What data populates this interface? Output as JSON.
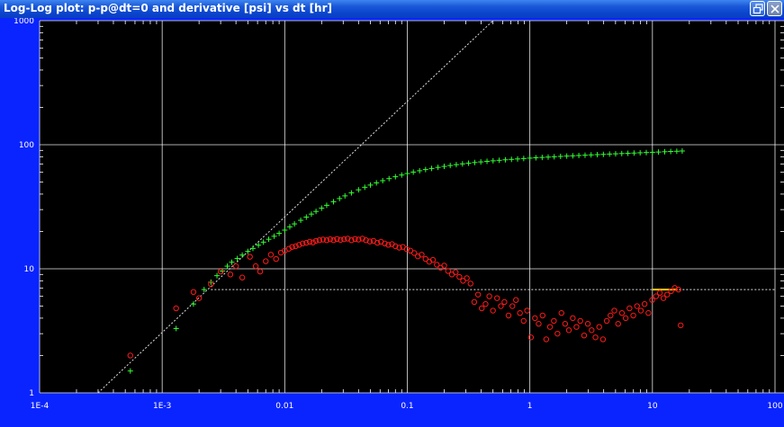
{
  "window": {
    "title": "Log-Log plot: p-p@dt=0 and derivative [psi] vs dt [hr]",
    "restore_icon": "restore-window-icon",
    "close_icon": "close-icon"
  },
  "chart_data": {
    "type": "scatter",
    "x_scale": "log",
    "y_scale": "log",
    "xlim": [
      0.0001,
      100
    ],
    "ylim": [
      1,
      1000
    ],
    "x_tick_labels": [
      "1E-4",
      "1E-3",
      "0.01",
      "0.1",
      "1",
      "10",
      "100"
    ],
    "y_tick_labels": [
      "1",
      "10",
      "100",
      "1000"
    ],
    "grid": true,
    "background": "#000000",
    "series": [
      {
        "kind": "pressure-change",
        "marker": "plus",
        "color": "#33ff33",
        "x": [
          0.00055,
          0.0013,
          0.0018,
          0.0022,
          0.0025,
          0.0028,
          0.0031,
          0.0034,
          0.0037,
          0.0041,
          0.0045,
          0.005,
          0.0055,
          0.0061,
          0.0067,
          0.0074,
          0.0082,
          0.009,
          0.01,
          0.011,
          0.012,
          0.0135,
          0.015,
          0.0165,
          0.018,
          0.02,
          0.022,
          0.025,
          0.028,
          0.031,
          0.035,
          0.04,
          0.045,
          0.05,
          0.056,
          0.063,
          0.071,
          0.08,
          0.09,
          0.1,
          0.112,
          0.126,
          0.141,
          0.158,
          0.178,
          0.2,
          0.224,
          0.251,
          0.282,
          0.316,
          0.355,
          0.398,
          0.447,
          0.501,
          0.562,
          0.631,
          0.708,
          0.794,
          0.891,
          1.0,
          1.12,
          1.26,
          1.41,
          1.58,
          1.78,
          2.0,
          2.24,
          2.51,
          2.82,
          3.16,
          3.55,
          3.98,
          4.47,
          5.01,
          5.62,
          6.31,
          7.08,
          7.94,
          8.91,
          10.0,
          11.2,
          12.6,
          14.1,
          15.8,
          17.5
        ],
        "y": [
          1.5,
          3.3,
          5.2,
          6.8,
          7.8,
          8.8,
          9.6,
          10.5,
          11.3,
          12.1,
          12.9,
          13.8,
          14.6,
          15.5,
          16.4,
          17.3,
          18.3,
          19.3,
          20.5,
          21.8,
          23.0,
          24.6,
          26.1,
          27.6,
          29.0,
          30.8,
          32.5,
          34.7,
          36.8,
          38.7,
          40.9,
          43.3,
          45.4,
          47.3,
          49.3,
          51.3,
          53.3,
          55.2,
          57.0,
          58.6,
          60.2,
          61.7,
          63.1,
          64.4,
          65.7,
          66.9,
          68.0,
          69.1,
          70.1,
          71.0,
          71.9,
          72.7,
          73.5,
          74.2,
          74.9,
          75.6,
          76.2,
          76.8,
          77.4,
          78.0,
          78.5,
          79.0,
          79.5,
          80.0,
          80.5,
          81.0,
          81.4,
          81.9,
          82.3,
          82.8,
          83.2,
          83.6,
          84.1,
          84.5,
          84.9,
          85.3,
          85.7,
          86.1,
          86.5,
          86.9,
          87.3,
          87.8,
          88.2,
          88.6,
          89.0
        ]
      },
      {
        "kind": "derivative",
        "marker": "circle",
        "color": "#ff1a1a",
        "x": [
          0.00055,
          0.0013,
          0.0018,
          0.002,
          0.0025,
          0.003,
          0.0036,
          0.004,
          0.0045,
          0.0052,
          0.0058,
          0.0063,
          0.007,
          0.0077,
          0.0085,
          0.0093,
          0.01,
          0.0108,
          0.0115,
          0.0123,
          0.0131,
          0.014,
          0.015,
          0.016,
          0.017,
          0.018,
          0.0192,
          0.0205,
          0.022,
          0.0235,
          0.025,
          0.0267,
          0.0285,
          0.0305,
          0.0326,
          0.035,
          0.0375,
          0.04,
          0.043,
          0.046,
          0.0495,
          0.053,
          0.057,
          0.061,
          0.0655,
          0.07,
          0.075,
          0.08,
          0.086,
          0.092,
          0.099,
          0.106,
          0.114,
          0.122,
          0.131,
          0.141,
          0.151,
          0.162,
          0.174,
          0.187,
          0.2,
          0.215,
          0.231,
          0.248,
          0.266,
          0.285,
          0.306,
          0.328,
          0.352,
          0.378,
          0.405,
          0.435,
          0.467,
          0.5,
          0.54,
          0.58,
          0.62,
          0.67,
          0.72,
          0.77,
          0.83,
          0.89,
          0.95,
          1.02,
          1.1,
          1.18,
          1.27,
          1.36,
          1.46,
          1.57,
          1.68,
          1.81,
          1.94,
          2.08,
          2.24,
          2.4,
          2.58,
          2.77,
          2.97,
          3.19,
          3.43,
          3.68,
          3.95,
          4.24,
          4.55,
          4.89,
          5.25,
          5.64,
          6.05,
          6.5,
          6.98,
          7.49,
          8.04,
          8.63,
          9.27,
          9.95,
          10.7,
          11.5,
          12.3,
          13.2,
          14.2,
          15.2,
          16.3,
          17.0
        ],
        "y": [
          2.0,
          4.8,
          6.5,
          5.8,
          7.5,
          9.5,
          9.0,
          10.5,
          8.5,
          12.5,
          10.5,
          9.5,
          11.5,
          13.0,
          12.0,
          13.5,
          14.0,
          14.5,
          15.0,
          15.2,
          15.6,
          16.0,
          16.2,
          16.5,
          16.3,
          16.8,
          17.0,
          17.2,
          17.0,
          17.3,
          17.0,
          17.4,
          17.1,
          17.3,
          17.5,
          17.0,
          17.4,
          17.2,
          17.5,
          17.0,
          16.6,
          16.8,
          16.2,
          16.5,
          16.0,
          15.6,
          15.8,
          15.2,
          14.8,
          15.0,
          14.4,
          14.0,
          13.4,
          12.6,
          13.0,
          12.0,
          11.4,
          11.8,
          10.8,
          10.2,
          10.6,
          9.6,
          9.0,
          9.4,
          8.6,
          8.0,
          8.4,
          7.6,
          5.4,
          6.2,
          4.8,
          5.2,
          6.0,
          4.6,
          5.8,
          5.0,
          5.4,
          4.2,
          5.0,
          5.6,
          4.4,
          3.8,
          4.6,
          2.8,
          4.0,
          3.6,
          4.2,
          2.7,
          3.4,
          3.8,
          3.0,
          4.4,
          3.6,
          3.2,
          4.0,
          3.4,
          3.8,
          2.9,
          3.6,
          3.2,
          2.8,
          3.4,
          2.7,
          3.8,
          4.2,
          4.6,
          3.6,
          4.4,
          4.0,
          4.8,
          4.2,
          5.0,
          4.6,
          5.2,
          4.4,
          5.6,
          6.0,
          6.4,
          5.8,
          6.2,
          6.6,
          7.0,
          6.8,
          3.5
        ]
      }
    ],
    "reference_lines": [
      {
        "kind": "unit-slope",
        "style": "dotted",
        "color": "#e0e0e0",
        "x": [
          0.0003,
          0.5
        ],
        "y": [
          1,
          1000
        ]
      },
      {
        "kind": "horizontal-stabilization",
        "style": "dotted",
        "color": "#e0e0e0",
        "x": [
          0.0025,
          100
        ],
        "y": [
          6.8,
          6.8
        ]
      },
      {
        "kind": "fitted-segment",
        "style": "solid",
        "color": "#ffcc00",
        "x": [
          10,
          16
        ],
        "y": [
          6.8,
          6.8
        ]
      }
    ]
  }
}
